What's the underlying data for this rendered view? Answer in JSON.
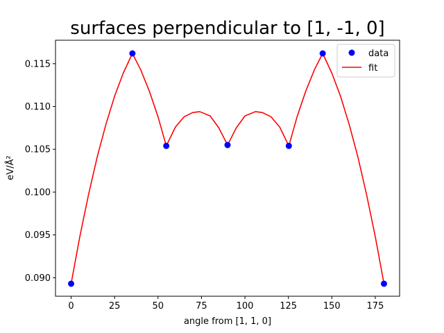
{
  "chart_data": {
    "type": "scatter",
    "title": "surfaces perpendicular to [1, -1, 0]",
    "xlabel": "angle from [1, 1, 0]",
    "ylabel": "eV/Å²",
    "xlim": [
      -8.99,
      188.99
    ],
    "ylim": [
      0.08784,
      0.11774
    ],
    "xticks": [
      0,
      25,
      50,
      75,
      100,
      125,
      150,
      175
    ],
    "yticks": [
      0.09,
      0.095,
      0.1,
      0.105,
      0.11,
      0.115
    ],
    "ytick_labels": [
      "0.090",
      "0.095",
      "0.100",
      "0.105",
      "0.110",
      "0.115"
    ],
    "grid": false,
    "legend_position": "top-right",
    "series": [
      {
        "name": "data",
        "kind": "markers",
        "color": "#0000ff",
        "x": [
          0,
          35.26,
          54.74,
          90,
          125.26,
          144.74,
          180
        ],
        "y": [
          0.0893,
          0.1162,
          0.1054,
          0.1055,
          0.1054,
          0.1162,
          0.0893
        ]
      },
      {
        "name": "fit",
        "kind": "line",
        "color": "#ff0000",
        "x": [
          0,
          5,
          10,
          15,
          20,
          25,
          30,
          35.26,
          40,
          45,
          50,
          54.74,
          60,
          65,
          70,
          74,
          80,
          85,
          90,
          95,
          100,
          106,
          110,
          115,
          120,
          125.26,
          130,
          135,
          140,
          144.74,
          150,
          155,
          160,
          165,
          170,
          175,
          180
        ],
        "y": [
          0.0893,
          0.0948,
          0.0997,
          0.1041,
          0.1079,
          0.1112,
          0.1139,
          0.1162,
          0.1143,
          0.1118,
          0.1088,
          0.1054,
          0.1076,
          0.1088,
          0.1093,
          0.1094,
          0.1089,
          0.1075,
          0.1055,
          0.1075,
          0.1089,
          0.1094,
          0.1093,
          0.1088,
          0.1076,
          0.1054,
          0.1088,
          0.1118,
          0.1143,
          0.1162,
          0.1139,
          0.1112,
          0.1079,
          0.1041,
          0.0997,
          0.0948,
          0.0893
        ]
      }
    ]
  }
}
